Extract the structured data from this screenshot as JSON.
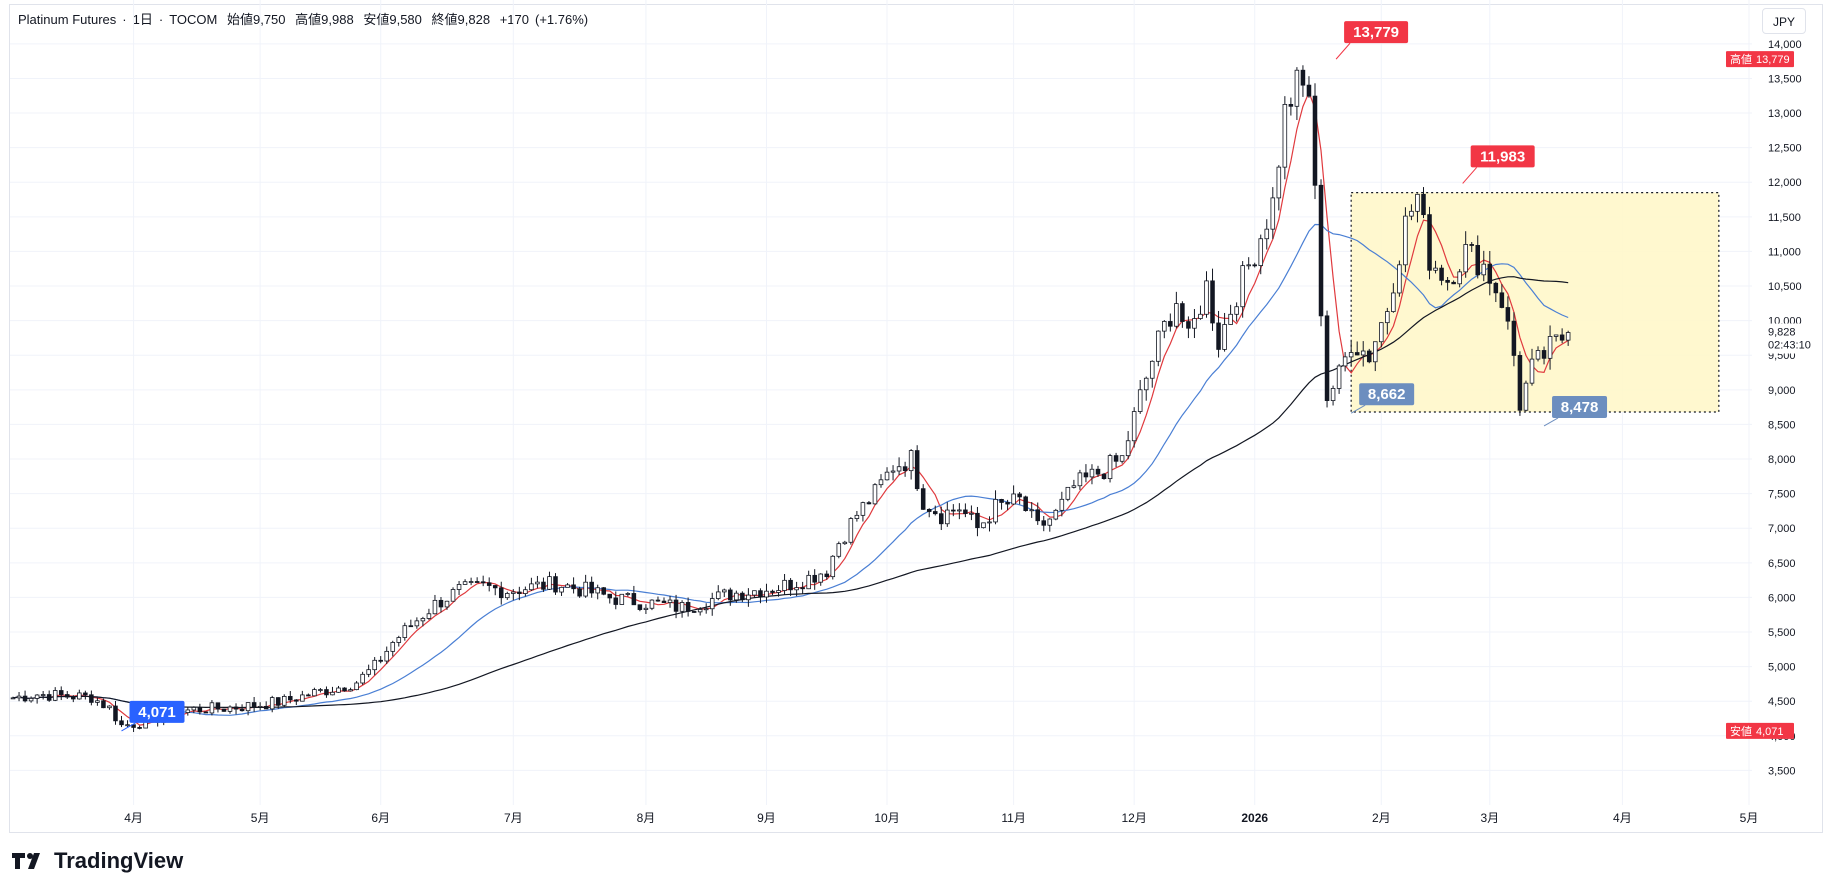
{
  "header": {
    "symbol": "Platinum Futures",
    "interval": "1日",
    "exchange": "TOCOM",
    "open_label": "始値",
    "open": "9,750",
    "high_label": "高値",
    "high": "9,988",
    "low_label": "安値",
    "low": "9,580",
    "close_label": "終値",
    "close": "9,828",
    "change": "+170",
    "change_pct": "(+1.76%)"
  },
  "currency": "JPY",
  "brand": "TradingView",
  "colors": {
    "up": "#ffffff",
    "down": "#131722",
    "ma_fast": "#e03a3e",
    "ma_mid": "#4a7fd4",
    "ma_slow": "#131722",
    "high_marker": "#f23645",
    "low_marker_main": "#2962ff",
    "low_marker_alt": "#6c8ebf",
    "box_fill": "#fff7c7"
  },
  "chart_data": {
    "type": "candlestick",
    "y_axis": {
      "range": [
        3000,
        14200
      ],
      "ticks": [
        3500,
        4000,
        4500,
        5000,
        5500,
        6000,
        6500,
        7000,
        7500,
        8000,
        8500,
        9000,
        9500,
        10000,
        10500,
        11000,
        11500,
        12000,
        12500,
        13000,
        13500,
        14000
      ],
      "tick_labels": [
        "3,500",
        "4,000",
        "4,500",
        "5,000",
        "5,500",
        "6,000",
        "6,500",
        "7,000",
        "7,500",
        "8,000",
        "8,500",
        "9,000",
        "9,500",
        "10,000",
        "10,500",
        "11,000",
        "11,500",
        "12,000",
        "12,500",
        "13,000",
        "13,500",
        "14,000"
      ]
    },
    "x_axis": {
      "labels": [
        "4月",
        "5月",
        "6月",
        "7月",
        "8月",
        "9月",
        "10月",
        "11月",
        "12月",
        "2026",
        "2月",
        "3月",
        "4月",
        "5月"
      ],
      "label_days": [
        20,
        41,
        61,
        83,
        105,
        125,
        145,
        166,
        186,
        206,
        227,
        245,
        267,
        288
      ],
      "total_days": 289
    },
    "price_markers": [
      {
        "label": "13,779",
        "value": 13779,
        "day": 219.5,
        "kind": "high"
      },
      {
        "label": "11,983",
        "value": 11983,
        "day": 240.5,
        "kind": "high"
      },
      {
        "label": "8,662",
        "value": 8662,
        "day": 222,
        "kind": "low"
      },
      {
        "label": "8,478",
        "value": 8478,
        "day": 254,
        "kind": "low"
      },
      {
        "label": "4,071",
        "value": 4071,
        "day": 18,
        "kind": "low"
      }
    ],
    "axis_badges": [
      {
        "label": "高値",
        "value_label": "13,779",
        "value": 13779
      },
      {
        "label": "安値",
        "value_label": "4,071",
        "value": 4071
      }
    ],
    "last_price": {
      "value_label": "9,828",
      "value": 9828,
      "countdown": "02:43:10"
    },
    "range_box": {
      "from_day": 222,
      "to_day": 283,
      "top": 11850,
      "bottom": 8680
    },
    "anchors": [
      [
        0,
        4550
      ],
      [
        4,
        4600
      ],
      [
        8,
        4580
      ],
      [
        13,
        4560
      ],
      [
        16,
        4400
      ],
      [
        18,
        4150
      ],
      [
        22,
        4200
      ],
      [
        26,
        4320
      ],
      [
        30,
        4380
      ],
      [
        35,
        4400
      ],
      [
        40,
        4440
      ],
      [
        45,
        4500
      ],
      [
        50,
        4620
      ],
      [
        54,
        4700
      ],
      [
        57,
        4780
      ],
      [
        60,
        5000
      ],
      [
        63,
        5350
      ],
      [
        66,
        5600
      ],
      [
        70,
        5900
      ],
      [
        74,
        6100
      ],
      [
        78,
        6150
      ],
      [
        82,
        6100
      ],
      [
        86,
        6150
      ],
      [
        90,
        6200
      ],
      [
        95,
        6100
      ],
      [
        99,
        6000
      ],
      [
        103,
        5950
      ],
      [
        107,
        5900
      ],
      [
        111,
        5850
      ],
      [
        115,
        5950
      ],
      [
        119,
        6050
      ],
      [
        123,
        6100
      ],
      [
        127,
        6150
      ],
      [
        131,
        6250
      ],
      [
        135,
        6400
      ],
      [
        137,
        6800
      ],
      [
        140,
        7200
      ],
      [
        143,
        7500
      ],
      [
        146,
        7900
      ],
      [
        149,
        8000
      ],
      [
        151,
        7400
      ],
      [
        154,
        7200
      ],
      [
        157,
        7300
      ],
      [
        160,
        7000
      ],
      [
        163,
        7300
      ],
      [
        167,
        7400
      ],
      [
        170,
        7000
      ],
      [
        173,
        7200
      ],
      [
        176,
        7600
      ],
      [
        180,
        7800
      ],
      [
        184,
        8000
      ],
      [
        187,
        8900
      ],
      [
        190,
        9700
      ],
      [
        193,
        10300
      ],
      [
        195,
        9700
      ],
      [
        198,
        10500
      ],
      [
        200,
        9700
      ],
      [
        203,
        10400
      ],
      [
        206,
        11000
      ],
      [
        209,
        11700
      ],
      [
        211,
        13000
      ],
      [
        213,
        13400
      ],
      [
        215,
        13300
      ],
      [
        216,
        11800
      ],
      [
        217,
        10200
      ],
      [
        218,
        8900
      ],
      [
        220,
        9200
      ],
      [
        222,
        9700
      ],
      [
        225,
        9500
      ],
      [
        228,
        10200
      ],
      [
        231,
        11400
      ],
      [
        233,
        11800
      ],
      [
        235,
        10900
      ],
      [
        238,
        10600
      ],
      [
        241,
        11000
      ],
      [
        244,
        10800
      ],
      [
        247,
        10300
      ],
      [
        249,
        9500
      ],
      [
        250,
        8800
      ],
      [
        252,
        9300
      ],
      [
        255,
        9600
      ],
      [
        258,
        9828
      ]
    ]
  }
}
